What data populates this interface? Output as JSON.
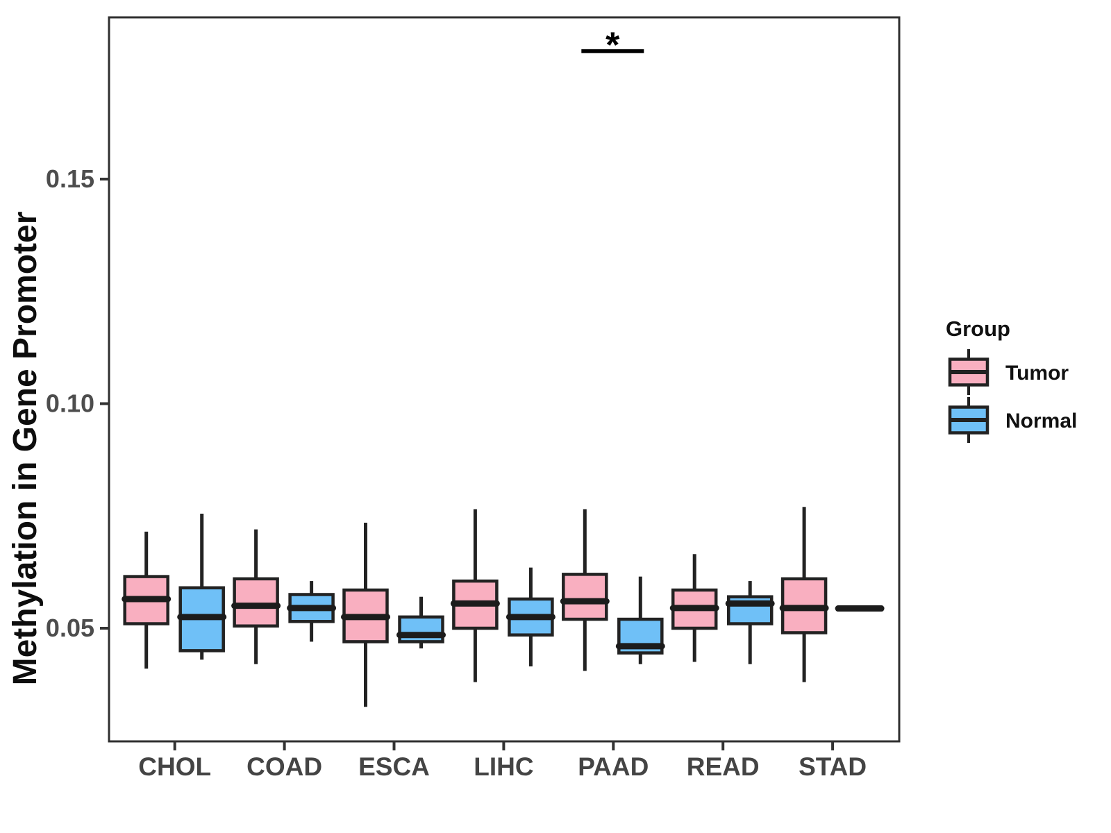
{
  "chart_data": {
    "type": "boxplot",
    "title": "",
    "ylabel": "Methylation in Gene Promoter",
    "xlabel": "",
    "categories": [
      "CHOL",
      "COAD",
      "ESCA",
      "LIHC",
      "PAAD",
      "READ",
      "STAD"
    ],
    "y_ticks": [
      {
        "value": 0.05,
        "label": "0.05"
      },
      {
        "value": 0.1,
        "label": "0.10"
      },
      {
        "value": 0.15,
        "label": "0.15"
      }
    ],
    "ylim": [
      0.0248,
      0.186
    ],
    "grid": false,
    "legend": {
      "title": "Group",
      "position": "right",
      "entries": [
        {
          "label": "Tumor",
          "fill": "#F9AFC0"
        },
        {
          "label": "Normal",
          "fill": "#6FC0F7"
        }
      ]
    },
    "series": [
      {
        "name": "Tumor",
        "fill": "#F9AFC0",
        "boxes": [
          {
            "category": "CHOL",
            "min": 0.041,
            "q1": 0.051,
            "median": 0.0565,
            "q3": 0.0615,
            "max": 0.0715
          },
          {
            "category": "COAD",
            "min": 0.042,
            "q1": 0.0505,
            "median": 0.055,
            "q3": 0.061,
            "max": 0.072
          },
          {
            "category": "ESCA",
            "min": 0.0325,
            "q1": 0.047,
            "median": 0.0525,
            "q3": 0.0585,
            "max": 0.0735
          },
          {
            "category": "LIHC",
            "min": 0.038,
            "q1": 0.05,
            "median": 0.0555,
            "q3": 0.0605,
            "max": 0.0765
          },
          {
            "category": "PAAD",
            "min": 0.0405,
            "q1": 0.052,
            "median": 0.056,
            "q3": 0.062,
            "max": 0.0765
          },
          {
            "category": "READ",
            "min": 0.0425,
            "q1": 0.05,
            "median": 0.0545,
            "q3": 0.0585,
            "max": 0.0665
          },
          {
            "category": "STAD",
            "min": 0.038,
            "q1": 0.049,
            "median": 0.0545,
            "q3": 0.061,
            "max": 0.077
          }
        ]
      },
      {
        "name": "Normal",
        "fill": "#6FC0F7",
        "boxes": [
          {
            "category": "CHOL",
            "min": 0.043,
            "q1": 0.045,
            "median": 0.0525,
            "q3": 0.059,
            "max": 0.0755
          },
          {
            "category": "COAD",
            "min": 0.047,
            "q1": 0.0515,
            "median": 0.0545,
            "q3": 0.0575,
            "max": 0.0605
          },
          {
            "category": "ESCA",
            "min": 0.0455,
            "q1": 0.047,
            "median": 0.0485,
            "q3": 0.0525,
            "max": 0.057
          },
          {
            "category": "LIHC",
            "min": 0.0415,
            "q1": 0.0485,
            "median": 0.0525,
            "q3": 0.0565,
            "max": 0.0635
          },
          {
            "category": "PAAD",
            "min": 0.042,
            "q1": 0.0445,
            "median": 0.046,
            "q3": 0.052,
            "max": 0.0615
          },
          {
            "category": "READ",
            "min": 0.042,
            "q1": 0.051,
            "median": 0.0555,
            "q3": 0.057,
            "max": 0.0605
          },
          {
            "category": "STAD",
            "min": 0.0538,
            "q1": 0.0541,
            "median": 0.0544,
            "q3": 0.0547,
            "max": 0.055
          }
        ]
      }
    ],
    "significance": {
      "label": "*",
      "category": "PAAD",
      "bar_y": 0.1785,
      "spans": [
        "Tumor",
        "Normal"
      ]
    },
    "style": {
      "box_border": "#222222",
      "median_color": "#1c1c1c",
      "panel_border": "#2f2f2f",
      "tick_color": "#333333",
      "tick_label_color": "#4d4d4d",
      "x_label_color": "#444444",
      "annotation_color": "#000000",
      "background": "#ffffff"
    }
  }
}
